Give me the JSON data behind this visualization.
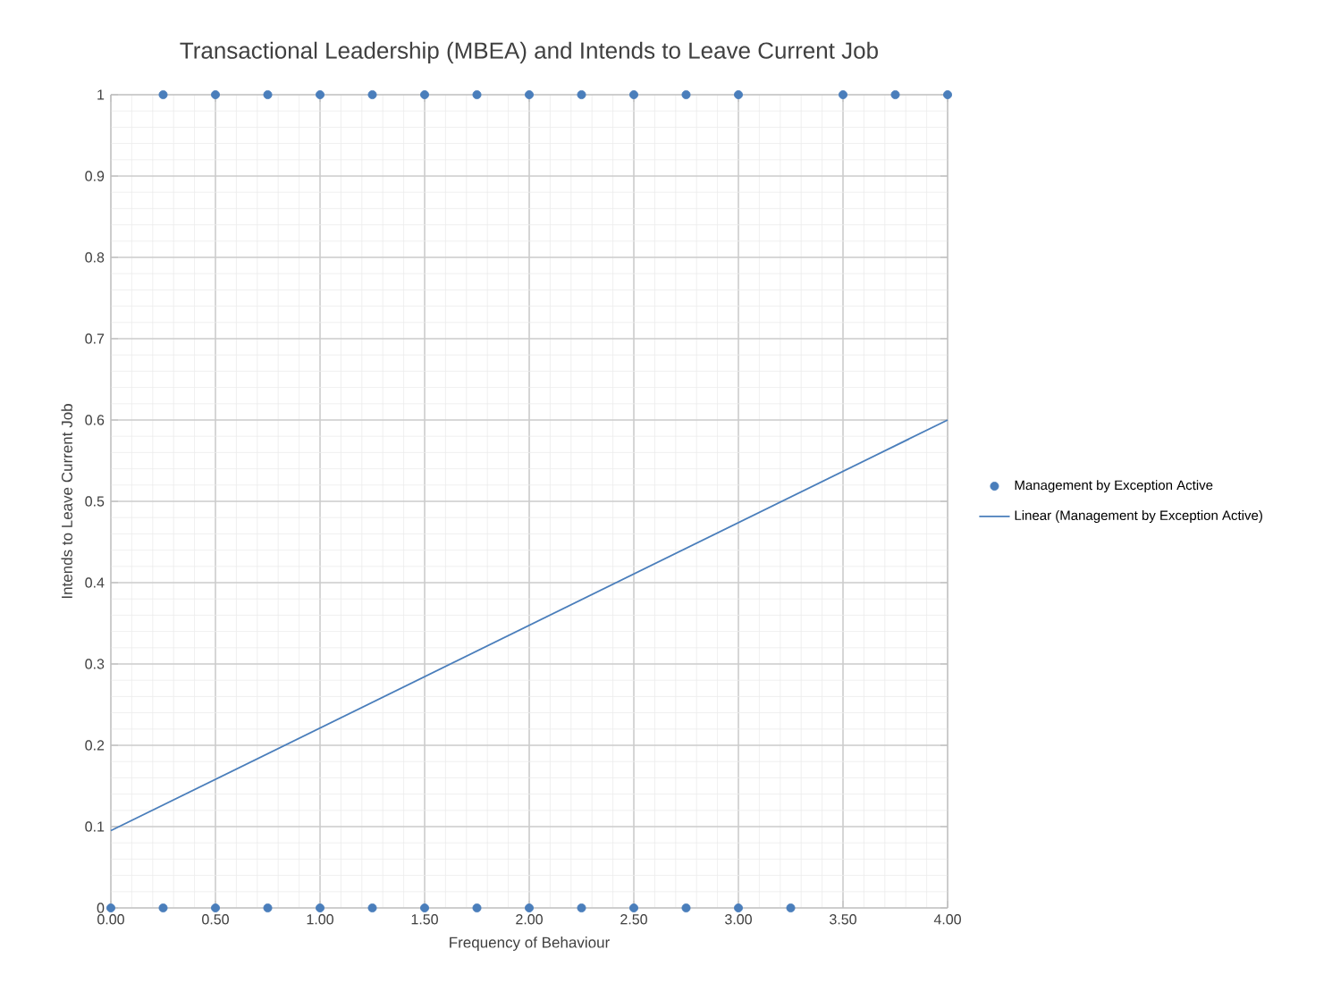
{
  "chart_data": {
    "type": "scatter",
    "title": "Transactional Leadership (MBEA) and Intends to Leave Current Job",
    "xlabel": "Frequency of Behaviour",
    "ylabel": "Intends to Leave Current Job",
    "xlim": [
      0,
      4
    ],
    "ylim": [
      0,
      1
    ],
    "xticks": [
      {
        "value": 0,
        "label": "0.00"
      },
      {
        "value": 0.5,
        "label": "0.50"
      },
      {
        "value": 1,
        "label": "1.00"
      },
      {
        "value": 1.5,
        "label": "1.50"
      },
      {
        "value": 2,
        "label": "2.00"
      },
      {
        "value": 2.5,
        "label": "2.50"
      },
      {
        "value": 3,
        "label": "3.00"
      },
      {
        "value": 3.5,
        "label": "3.50"
      },
      {
        "value": 4,
        "label": "4.00"
      }
    ],
    "yticks": [
      0,
      0.1,
      0.2,
      0.3,
      0.4,
      0.5,
      0.6,
      0.7,
      0.8,
      0.9,
      1
    ],
    "grid": true,
    "legend": "right",
    "series": [
      {
        "name": "Management by Exception Active",
        "marker": "circle",
        "color": "#4a7ebb",
        "x": [
          0.25,
          0.5,
          0.75,
          1,
          1.25,
          1.5,
          1.75,
          2,
          2.25,
          2.5,
          2.75,
          3,
          3.5,
          3.75,
          4,
          0,
          0.25,
          0.5,
          0.75,
          1,
          1.25,
          1.5,
          1.75,
          2,
          2.25,
          2.5,
          2.75,
          3,
          3.25
        ],
        "values": [
          1,
          1,
          1,
          1,
          1,
          1,
          1,
          1,
          1,
          1,
          1,
          1,
          1,
          1,
          1,
          0,
          0,
          0,
          0,
          0,
          0,
          0,
          0,
          0,
          0,
          0,
          0,
          0,
          0
        ]
      },
      {
        "name": "Linear (Management by Exception Active)",
        "type": "line",
        "marker": "none",
        "line_style": "solid",
        "color": "#4a7ebb",
        "x": [
          0,
          4
        ],
        "values": [
          0.095,
          0.6
        ]
      }
    ]
  }
}
